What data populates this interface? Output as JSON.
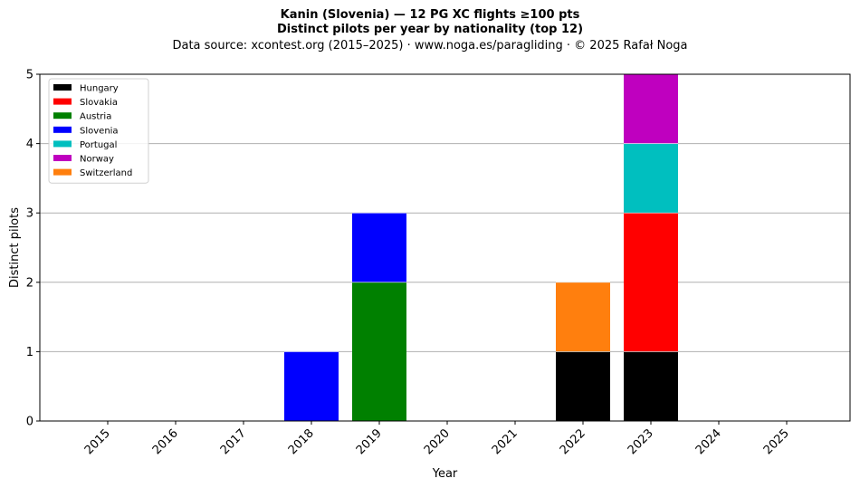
{
  "chart_data": {
    "type": "bar",
    "stacked": true,
    "title": "Kanin (Slovenia)  —  12 PG XC flights ≥100 pts",
    "subtitle": "Distinct pilots per year by nationality (top 12)",
    "source": "Data source: xcontest.org (2015–2025)  ·  www.noga.es/paragliding  ·  © 2025 Rafał Noga",
    "xlabel": "Year",
    "ylabel": "Distinct pilots",
    "categories": [
      "2015",
      "2016",
      "2017",
      "2018",
      "2019",
      "2020",
      "2021",
      "2022",
      "2023",
      "2024",
      "2025"
    ],
    "ylim": [
      0,
      5
    ],
    "yticks": [
      "0",
      "1",
      "2",
      "3",
      "4",
      "5"
    ],
    "grid": "horizontal",
    "legend_position": "top-left",
    "series": [
      {
        "name": "Hungary",
        "color": "#000000",
        "values": [
          0,
          0,
          0,
          0,
          0,
          0,
          0,
          1,
          1,
          0,
          0
        ]
      },
      {
        "name": "Slovakia",
        "color": "#ff0000",
        "values": [
          0,
          0,
          0,
          0,
          0,
          0,
          0,
          0,
          2,
          0,
          0
        ]
      },
      {
        "name": "Austria",
        "color": "#008000",
        "values": [
          0,
          0,
          0,
          0,
          2,
          0,
          0,
          0,
          0,
          0,
          0
        ]
      },
      {
        "name": "Slovenia",
        "color": "#0000ff",
        "values": [
          0,
          0,
          0,
          1,
          1,
          0,
          0,
          0,
          0,
          0,
          0
        ]
      },
      {
        "name": "Portugal",
        "color": "#00bfbf",
        "values": [
          0,
          0,
          0,
          0,
          0,
          0,
          0,
          0,
          1,
          0,
          0
        ]
      },
      {
        "name": "Norway",
        "color": "#bf00bf",
        "values": [
          0,
          0,
          0,
          0,
          0,
          0,
          0,
          0,
          1,
          0,
          0
        ]
      },
      {
        "name": "Switzerland",
        "color": "#ff7f0e",
        "values": [
          0,
          0,
          0,
          0,
          0,
          0,
          0,
          1,
          0,
          0,
          0
        ]
      }
    ]
  }
}
